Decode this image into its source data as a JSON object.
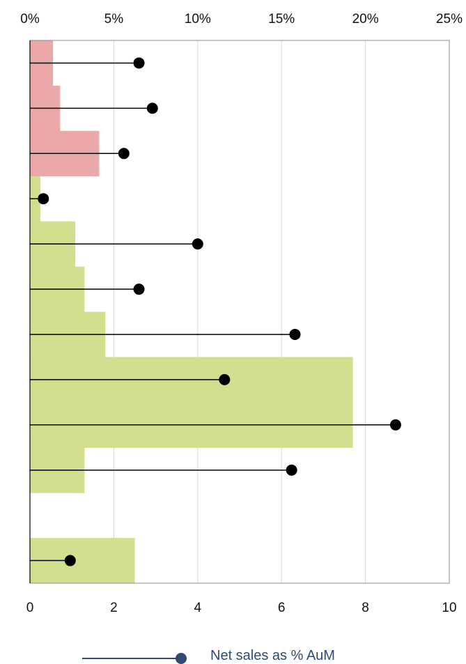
{
  "chart_data": {
    "type": "bar",
    "top_axis": {
      "range": [
        0,
        25
      ],
      "tick_values": [
        0,
        5,
        10,
        15,
        20,
        25
      ],
      "tick_labels": [
        "0%",
        "5%",
        "10%",
        "15%",
        "20%",
        "25%"
      ]
    },
    "bottom_axis": {
      "range": [
        0,
        10
      ],
      "tick_values": [
        0,
        2,
        4,
        6,
        8,
        10
      ],
      "tick_labels": [
        "0",
        "2",
        "4",
        "6",
        "8",
        "10"
      ]
    },
    "grid": "vertical",
    "legend_position": "bottom",
    "colors": {
      "negative_band": "#eaa8a8",
      "positive_band": "#d3df8f",
      "marker": "#000000",
      "legend": "#2e4a75",
      "grid": "#d9d9d9"
    },
    "series": [
      {
        "kind": "band",
        "axis": "bottom",
        "values": [
          0.55,
          0.72,
          1.65,
          0.25,
          1.08,
          1.3,
          1.8,
          7.7,
          7.7,
          1.3,
          0,
          2.5
        ],
        "band_colors": [
          "negative",
          "negative",
          "negative",
          "positive",
          "positive",
          "positive",
          "positive",
          "positive",
          "positive",
          "positive",
          "positive",
          "positive"
        ]
      },
      {
        "kind": "lollipop",
        "axis": "top",
        "name": "Net sales as % AuM",
        "values": [
          6.5,
          7.3,
          5.6,
          0.8,
          10.0,
          6.5,
          15.8,
          11.6,
          21.8,
          15.6,
          null,
          2.4
        ]
      }
    ],
    "legend": {
      "label": "Net sales as % AuM"
    }
  }
}
